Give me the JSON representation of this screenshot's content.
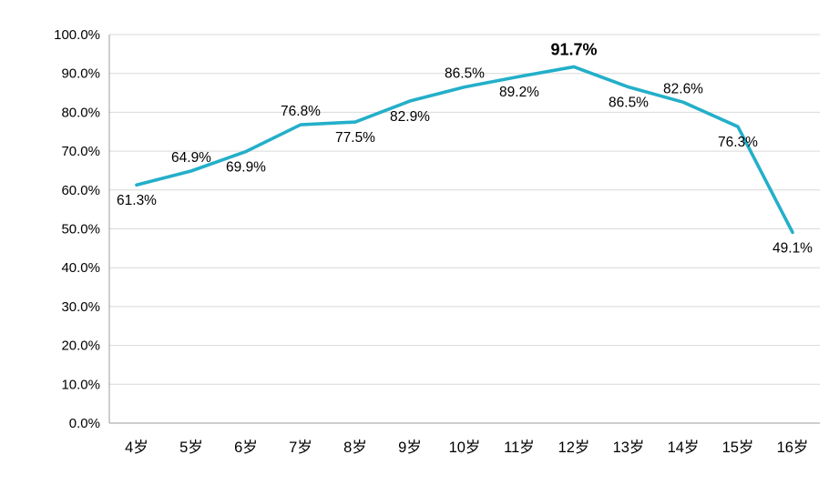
{
  "chart": {
    "background": "#ffffff",
    "line_color": "#23afc9",
    "grid_color": "#d9d9d9",
    "axis_color": "#9c9c9c",
    "text_color": "#000000"
  },
  "chart_data": {
    "type": "line",
    "title": "",
    "xlabel": "",
    "ylabel": "",
    "categories": [
      "4岁",
      "5岁",
      "6岁",
      "7岁",
      "8岁",
      "9岁",
      "10岁",
      "11岁",
      "12岁",
      "13岁",
      "14岁",
      "15岁",
      "16岁"
    ],
    "values": [
      61.3,
      64.9,
      69.9,
      76.8,
      77.5,
      82.9,
      86.5,
      89.2,
      91.7,
      86.5,
      82.6,
      76.3,
      49.1
    ],
    "data_labels": [
      "61.3%",
      "64.9%",
      "69.9%",
      "76.8%",
      "77.5%",
      "82.9%",
      "86.5%",
      "89.2%",
      "91.7%",
      "86.5%",
      "82.6%",
      "76.3%",
      "49.1%"
    ],
    "label_positions": [
      "below",
      "above",
      "below",
      "above",
      "below",
      "below",
      "above",
      "below",
      "above",
      "below",
      "above",
      "below",
      "below"
    ],
    "emphasized_index": 8,
    "emphasized_label": "91.7%",
    "ylim": [
      0,
      100
    ],
    "ytick_step": 10,
    "ytick_labels": [
      "0.0%",
      "10.0%",
      "20.0%",
      "30.0%",
      "40.0%",
      "50.0%",
      "60.0%",
      "70.0%",
      "80.0%",
      "90.0%",
      "100.0%"
    ],
    "grid": true,
    "legend": "none"
  }
}
